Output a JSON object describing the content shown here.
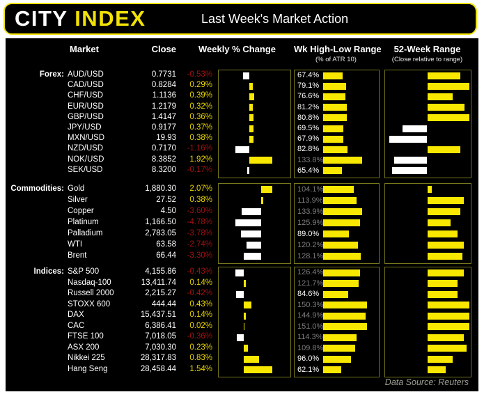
{
  "header": {
    "logo_city": "CITY",
    "logo_index": "INDEX",
    "title": "Last Week's Market Action"
  },
  "columns": {
    "market": "Market",
    "close": "Close",
    "weekly": "Weekly % Change",
    "wk_range": "Wk High-Low Range",
    "wk_range_sub": "(% of ATR 10)",
    "yr_range": "52-Week Range",
    "yr_range_sub": "(Close relative to range)"
  },
  "footer": {
    "source": "Data Source: Reuters"
  },
  "colors": {
    "accent_yellow": "#f2e205",
    "bar_yellow": "#f8e800",
    "bar_white": "#ffffff",
    "positive_text": "#e8d403",
    "negative_text": "#a01212",
    "over_100_text": "#7d7d7d",
    "normal_text": "#ffffff",
    "panel_border": "#77771c"
  },
  "chart_data": {
    "type": "table",
    "title": "Last Week's Market Action",
    "columns": [
      "Market",
      "Close",
      "Weekly % Change",
      "Wk High-Low Range (% of ATR 10)",
      "52-Week Range (Close relative to range)"
    ],
    "notes": "Weekly % bars: yellow = positive, white = negative. 52-week bars drawn from range midpoint: yellow right = close in upper half, white left = close in lower half.",
    "sections": [
      {
        "label": "Forex:",
        "rows": [
          {
            "market": "AUD/USD",
            "close": "0.7731",
            "weekly_pct": -0.53,
            "weekly_label": "-0.53%",
            "atr_pct": 67.4,
            "atr_label": "67.4%",
            "range_pos": 0.89
          },
          {
            "market": "CAD/USD",
            "close": "0.8284",
            "weekly_pct": 0.29,
            "weekly_label": "0.29%",
            "atr_pct": 79.1,
            "atr_label": "79.1%",
            "range_pos": 1.0
          },
          {
            "market": "CHF/USD",
            "close": "1.1136",
            "weekly_pct": 0.39,
            "weekly_label": "0.39%",
            "atr_pct": 76.6,
            "atr_label": "76.6%",
            "range_pos": 0.8
          },
          {
            "market": "EUR/USD",
            "close": "1.2179",
            "weekly_pct": 0.32,
            "weekly_label": "0.32%",
            "atr_pct": 81.2,
            "atr_label": "81.2%",
            "range_pos": 0.94
          },
          {
            "market": "GBP/USD",
            "close": "1.4147",
            "weekly_pct": 0.36,
            "weekly_label": "0.36%",
            "atr_pct": 80.8,
            "atr_label": "80.8%",
            "range_pos": 1.0
          },
          {
            "market": "JPY/USD",
            "close": "0.9177",
            "weekly_pct": 0.37,
            "weekly_label": "0.37%",
            "atr_pct": 69.5,
            "atr_label": "69.5%",
            "range_pos": 0.21
          },
          {
            "market": "MXN/USD",
            "close": "19.93",
            "weekly_pct": 0.38,
            "weekly_label": "0.38%",
            "atr_pct": 67.9,
            "atr_label": "67.9%",
            "range_pos": 0.05
          },
          {
            "market": "NZD/USD",
            "close": "0.7170",
            "weekly_pct": -1.16,
            "weekly_label": "-1.16%",
            "atr_pct": 82.8,
            "atr_label": "82.8%",
            "range_pos": 0.89
          },
          {
            "market": "NOK/USD",
            "close": "8.3852",
            "weekly_pct": 1.92,
            "weekly_label": "1.92%",
            "atr_pct": 133.8,
            "atr_label": "133.8%",
            "range_pos": 0.11
          },
          {
            "market": "SEK/USD",
            "close": "8.3200",
            "weekly_pct": -0.17,
            "weekly_label": "-0.17%",
            "atr_pct": 65.4,
            "atr_label": "65.4%",
            "range_pos": 0.08
          }
        ]
      },
      {
        "label": "Commodities:",
        "rows": [
          {
            "market": "Gold",
            "close": "1,880.30",
            "weekly_pct": 2.07,
            "weekly_label": "2.07%",
            "atr_pct": 104.1,
            "atr_label": "104.1%",
            "range_pos": 0.55
          },
          {
            "market": "Silver",
            "close": "27.52",
            "weekly_pct": 0.38,
            "weekly_label": "0.38%",
            "atr_pct": 113.9,
            "atr_label": "113.9%",
            "range_pos": 0.93
          },
          {
            "market": "Copper",
            "close": "4.50",
            "weekly_pct": -3.6,
            "weekly_label": "-3.60%",
            "atr_pct": 133.9,
            "atr_label": "133.9%",
            "range_pos": 0.89
          },
          {
            "market": "Platinum",
            "close": "1,166.50",
            "weekly_pct": -4.78,
            "weekly_label": "-4.78%",
            "atr_pct": 125.9,
            "atr_label": "125.9%",
            "range_pos": 0.78
          },
          {
            "market": "Palladium",
            "close": "2,783.05",
            "weekly_pct": -3.78,
            "weekly_label": "-3.78%",
            "atr_pct": 89.0,
            "atr_label": "89.0%",
            "range_pos": 0.86
          },
          {
            "market": "WTI",
            "close": "63.58",
            "weekly_pct": -2.74,
            "weekly_label": "-2.74%",
            "atr_pct": 120.2,
            "atr_label": "120.2%",
            "range_pos": 0.93
          },
          {
            "market": "Brent",
            "close": "66.44",
            "weekly_pct": -3.3,
            "weekly_label": "-3.30%",
            "atr_pct": 128.1,
            "atr_label": "128.1%",
            "range_pos": 0.92
          }
        ]
      },
      {
        "label": "Indices:",
        "rows": [
          {
            "market": "S&P 500",
            "close": "4,155.86",
            "weekly_pct": -0.43,
            "weekly_label": "-0.43%",
            "atr_pct": 126.4,
            "atr_label": "126.4%",
            "range_pos": 0.93
          },
          {
            "market": "Nasdaq-100",
            "close": "13,411.74",
            "weekly_pct": 0.14,
            "weekly_label": "0.14%",
            "atr_pct": 121.7,
            "atr_label": "121.7%",
            "range_pos": 0.86
          },
          {
            "market": "Russell 2000",
            "close": "2,215.27",
            "weekly_pct": -0.42,
            "weekly_label": "-0.42%",
            "atr_pct": 84.6,
            "atr_label": "84.6%",
            "range_pos": 0.86
          },
          {
            "market": "STOXX 600",
            "close": "444.44",
            "weekly_pct": 0.43,
            "weekly_label": "0.43%",
            "atr_pct": 150.3,
            "atr_label": "150.3%",
            "range_pos": 1.0
          },
          {
            "market": "DAX",
            "close": "15,437.51",
            "weekly_pct": 0.14,
            "weekly_label": "0.14%",
            "atr_pct": 144.9,
            "atr_label": "144.9%",
            "range_pos": 1.0
          },
          {
            "market": "CAC",
            "close": "6,386.41",
            "weekly_pct": 0.02,
            "weekly_label": "0.02%",
            "atr_pct": 151.0,
            "atr_label": "151.0%",
            "range_pos": 1.0
          },
          {
            "market": "FTSE 100",
            "close": "7,018.05",
            "weekly_pct": -0.36,
            "weekly_label": "-0.36%",
            "atr_pct": 114.3,
            "atr_label": "114.3%",
            "range_pos": 0.93
          },
          {
            "market": "ASX 200",
            "close": "7,030.30",
            "weekly_pct": 0.23,
            "weekly_label": "0.23%",
            "atr_pct": 109.8,
            "atr_label": "109.8%",
            "range_pos": 0.97
          },
          {
            "market": "Nikkei 225",
            "close": "28,317.83",
            "weekly_pct": 0.83,
            "weekly_label": "0.83%",
            "atr_pct": 96.0,
            "atr_label": "96.0%",
            "range_pos": 0.8
          },
          {
            "market": "Hang Seng",
            "close": "28,458.44",
            "weekly_pct": 1.54,
            "weekly_label": "1.54%",
            "atr_pct": 62.1,
            "atr_label": "62.1%",
            "range_pos": 0.72
          }
        ]
      }
    ]
  }
}
